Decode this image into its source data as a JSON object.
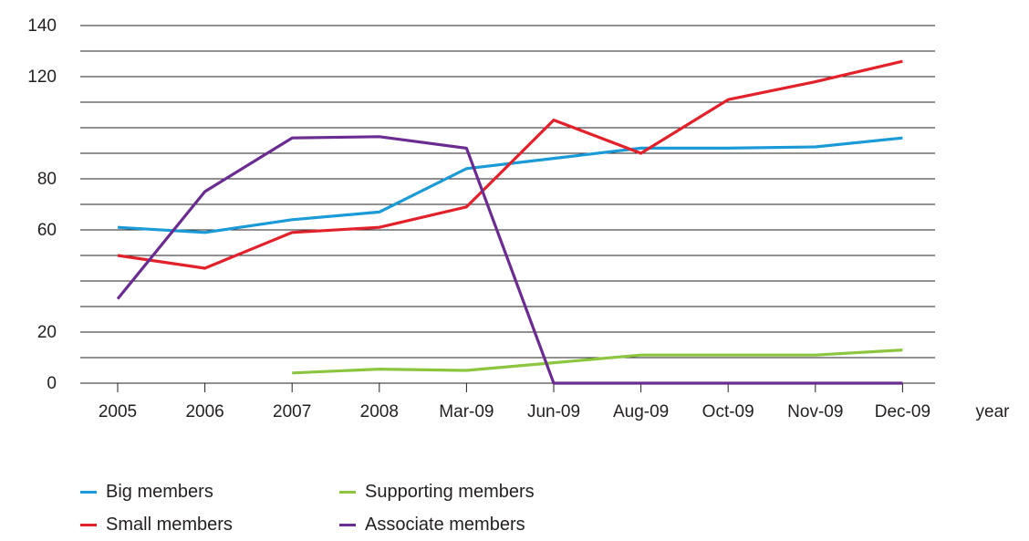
{
  "chart_data": {
    "type": "line",
    "categories": [
      "2005",
      "2006",
      "2007",
      "2008",
      "Mar-09",
      "Jun-09",
      "Aug-09",
      "Oct-09",
      "Nov-09",
      "Dec-09"
    ],
    "xlabel": "year",
    "ylabel": "",
    "ylim": [
      0,
      140
    ],
    "y_tick_labels": [
      "0",
      "20",
      "60",
      "80",
      "120",
      "140"
    ],
    "grid": "horizontal",
    "legend_position": "bottom",
    "series": [
      {
        "name": "Big members",
        "color": "#1a9ad6",
        "values": [
          61,
          59,
          64,
          67,
          84,
          88,
          92,
          92,
          92.5,
          96
        ]
      },
      {
        "name": "Small members",
        "color": "#e3212b",
        "values": [
          50,
          45,
          59,
          61,
          69,
          103,
          90,
          111,
          118,
          126
        ]
      },
      {
        "name": "Supporting members",
        "color": "#8cc63f",
        "values": [
          null,
          null,
          4,
          5.5,
          5,
          8,
          11,
          11,
          11,
          13
        ]
      },
      {
        "name": "Associate members",
        "color": "#6a2c91",
        "values": [
          33,
          75,
          96,
          96.5,
          92,
          0,
          0,
          0,
          0,
          0
        ]
      }
    ]
  }
}
